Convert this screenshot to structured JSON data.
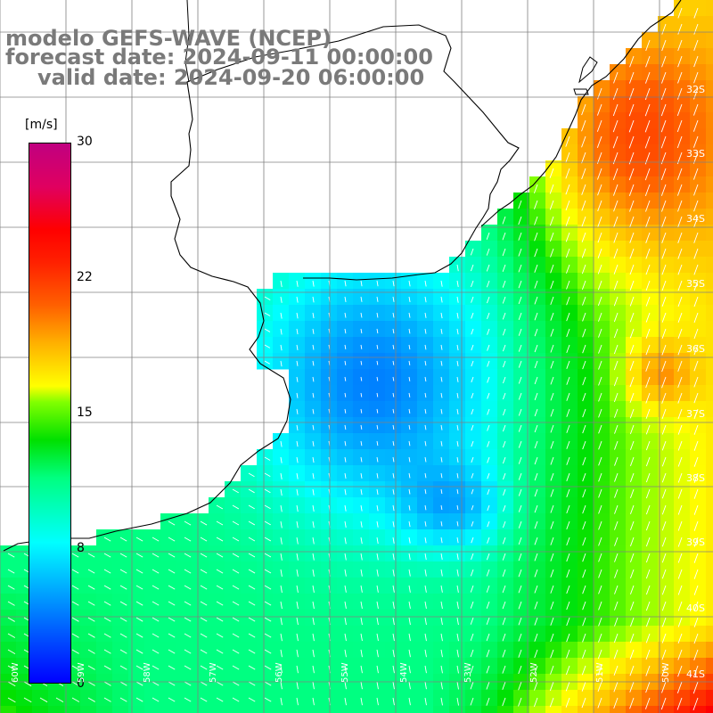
{
  "header": {
    "model": "modelo GEFS-WAVE (NCEP)",
    "forecast": "forecast date: 2024-09-11 00:00:00",
    "valid": "valid date: 2024-09-20 06:00:00"
  },
  "colorbar": {
    "unit": "[m/s]",
    "ticks": [
      "30",
      "22",
      "15",
      "8",
      "0"
    ]
  },
  "lat_labels": [
    "32S",
    "33S",
    "34S",
    "35S",
    "36S",
    "37S",
    "38S",
    "39S",
    "40S",
    "41S"
  ],
  "lon_labels": [
    "60W",
    "59W",
    "58W",
    "57W",
    "56W",
    "55W",
    "54W",
    "53W",
    "52W",
    "51W",
    "50W"
  ],
  "colors": {
    "weak": "#1560ff",
    "moderate": "#00e4e8",
    "strong": "#36e23a",
    "very_strong": "#ffb000",
    "land": "#ffffff",
    "grid": "#808080",
    "coast": "#000000",
    "arrow": "#ffffff"
  }
}
